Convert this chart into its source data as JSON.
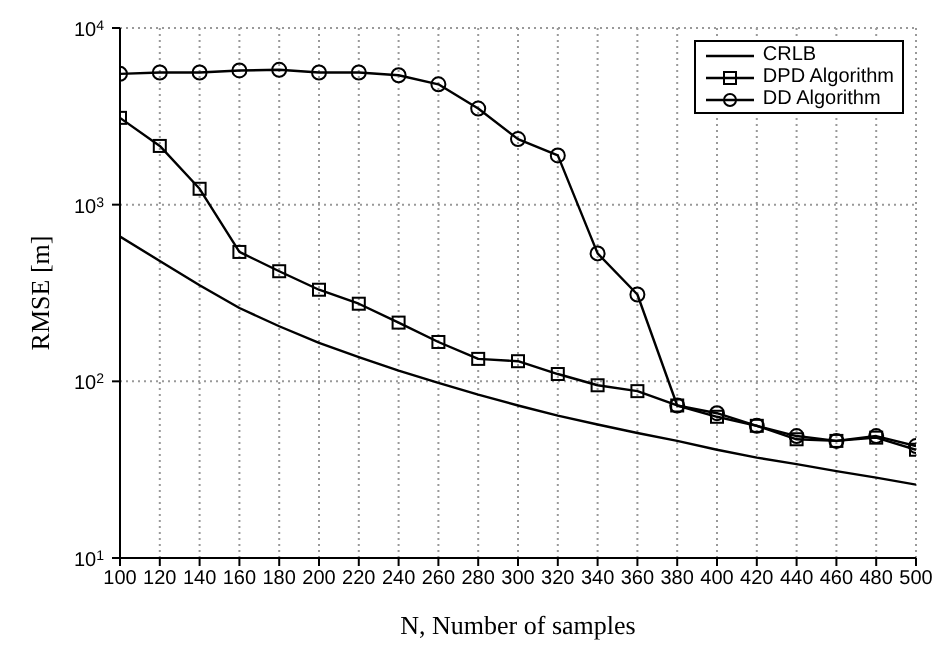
{
  "chart_data": {
    "type": "line",
    "xlabel": "N, Number of samples",
    "ylabel": "RMSE [m]",
    "x": [
      100,
      120,
      140,
      160,
      180,
      200,
      220,
      240,
      260,
      280,
      300,
      320,
      340,
      360,
      380,
      400,
      420,
      440,
      460,
      480,
      500
    ],
    "series": [
      {
        "name": "CRLB",
        "color": "#000000",
        "marker": "none",
        "values": [
          660,
          480,
          350,
          260,
          205,
          165,
          137,
          115,
          98,
          84,
          73,
          64,
          57,
          51,
          46,
          41,
          37,
          34,
          31,
          28.5,
          26
        ]
      },
      {
        "name": "DPD Algorithm",
        "color": "#000000",
        "marker": "square",
        "values": [
          3100,
          2150,
          1230,
          540,
          420,
          330,
          275,
          215,
          167,
          134,
          130,
          110,
          95,
          88,
          73,
          63,
          56,
          47,
          46,
          48,
          41
        ]
      },
      {
        "name": "DD Algorithm",
        "color": "#000000",
        "marker": "circle",
        "values": [
          5500,
          5600,
          5600,
          5750,
          5800,
          5600,
          5600,
          5400,
          4800,
          3500,
          2350,
          1900,
          530,
          310,
          73,
          66,
          56,
          49,
          46,
          49,
          43
        ]
      }
    ],
    "xlim": [
      100,
      500
    ],
    "xticks": [
      100,
      120,
      140,
      160,
      180,
      200,
      220,
      240,
      260,
      280,
      300,
      320,
      340,
      360,
      380,
      400,
      420,
      440,
      460,
      480,
      500
    ],
    "ylim": [
      10,
      10000
    ],
    "log": "y",
    "yticks": [
      {
        "value": 10,
        "label": "10$^{1}$"
      },
      {
        "value": 100,
        "label": "10$^{2}$"
      },
      {
        "value": 1000,
        "label": "10$^{3}$"
      },
      {
        "value": 10000,
        "label": "10$^{4}$"
      }
    ],
    "grid": true,
    "legend": "top right",
    "line_style": "solid"
  }
}
